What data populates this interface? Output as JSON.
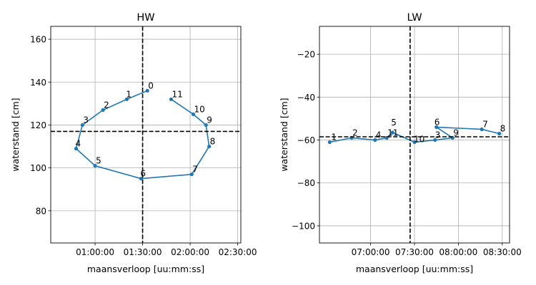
{
  "chart_data": [
    {
      "type": "line",
      "title": "HW",
      "xlabel": "maansverloop [uu:mm:ss]",
      "ylabel": "waterstand [cm]",
      "x_unit": "time-of-day",
      "xlim": [
        "00:32:00",
        "02:32:00"
      ],
      "ylim": [
        65,
        166
      ],
      "xticks": [
        "01:00:00",
        "01:30:00",
        "02:00:00",
        "02:30:00"
      ],
      "yticks": [
        80,
        100,
        120,
        140,
        160
      ],
      "grid": true,
      "series": [
        {
          "color": "#1f77b4",
          "points": [
            {
              "label": "0",
              "x": "01:33:00",
              "y": 136
            },
            {
              "label": "1",
              "x": "01:20:00",
              "y": 132
            },
            {
              "label": "2",
              "x": "01:05:00",
              "y": 127
            },
            {
              "label": "3",
              "x": "00:52:00",
              "y": 120
            },
            {
              "label": "4",
              "x": "00:48:00",
              "y": 109
            },
            {
              "label": "5",
              "x": "01:00:00",
              "y": 101
            },
            {
              "label": "6",
              "x": "01:29:00",
              "y": 95
            },
            {
              "label": "7",
              "x": "02:01:00",
              "y": 97
            },
            {
              "label": "8",
              "x": "02:12:00",
              "y": 110
            },
            {
              "label": "9",
              "x": "02:10:00",
              "y": 120
            },
            {
              "label": "10",
              "x": "02:02:00",
              "y": 125
            },
            {
              "label": "11",
              "x": "01:48:00",
              "y": 132
            }
          ]
        }
      ],
      "reference_lines": {
        "vertical_x": "01:30:00",
        "horizontal_y": 117,
        "color": "#000000",
        "style": "dashed"
      }
    },
    {
      "type": "line",
      "title": "LW",
      "xlabel": "maansverloop [uu:mm:ss]",
      "ylabel": "waterstand [cm]",
      "x_unit": "time-of-day",
      "xlim": [
        "06:25:00",
        "08:35:00"
      ],
      "ylim": [
        -108,
        -7
      ],
      "xticks": [
        "07:00:00",
        "07:30:00",
        "08:00:00",
        "08:30:00"
      ],
      "yticks": [
        -100,
        -80,
        -60,
        -40,
        -20
      ],
      "grid": true,
      "series": [
        {
          "color": "#1f77b4",
          "points": [
            {
              "label": "1",
              "x": "06:32:00",
              "y": -61
            },
            {
              "label": "2",
              "x": "06:47:00",
              "y": -59
            },
            {
              "label": "4",
              "x": "07:03:00",
              "y": -60
            },
            {
              "label": "11",
              "x": "07:11:00",
              "y": -59
            },
            {
              "label": "5",
              "x": "07:15:00",
              "y": -56.5
            },
            {
              "label": "10",
              "x": "07:30:00",
              "y": -61
            },
            {
              "label": "3",
              "x": "07:44:00",
              "y": -60
            },
            {
              "label": "9",
              "x": "07:56:00",
              "y": -59
            },
            {
              "label": "6",
              "x": "07:45:00",
              "y": -54
            },
            {
              "label": "7",
              "x": "08:16:00",
              "y": -55
            },
            {
              "label": "8",
              "x": "08:28:00",
              "y": -57
            }
          ]
        }
      ],
      "reference_lines": {
        "vertical_x": "07:27:00",
        "horizontal_y": -58.5,
        "color": "#000000",
        "style": "dashed"
      }
    }
  ]
}
